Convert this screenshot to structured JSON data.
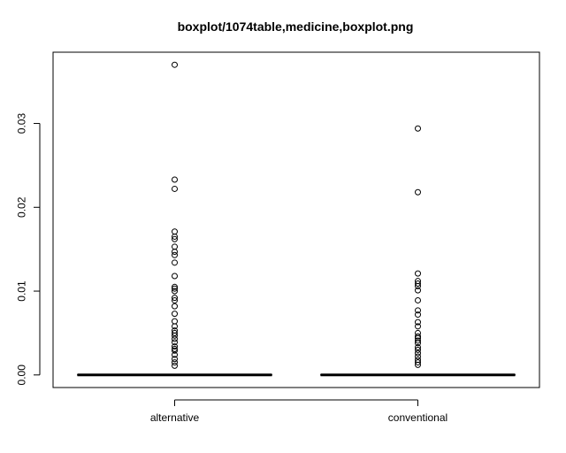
{
  "chart_data": {
    "type": "boxplot",
    "title": "boxplot/1074table,medicine,boxplot.png",
    "xlabel": "",
    "ylabel": "",
    "categories": [
      "alternative",
      "conventional"
    ],
    "ylim": [
      -0.0015,
      0.0385
    ],
    "yticks": [
      "0.00",
      "0.01",
      "0.02",
      "0.03"
    ],
    "grid": false,
    "colors": {
      "axis": "#000000",
      "median": "#000000",
      "outlier": "#000000",
      "background": "#ffffff"
    },
    "series": [
      {
        "category": "alternative",
        "min": 0,
        "q1": 0,
        "median": 0,
        "q3": 0,
        "max": 0,
        "outliers": [
          0.037,
          0.0233,
          0.0222,
          0.0171,
          0.0165,
          0.0162,
          0.0153,
          0.0147,
          0.0143,
          0.0134,
          0.0118,
          0.0105,
          0.0103,
          0.01,
          0.0092,
          0.0089,
          0.0082,
          0.0073,
          0.0064,
          0.0058,
          0.0053,
          0.005,
          0.0047,
          0.0043,
          0.0039,
          0.0034,
          0.0031,
          0.0029,
          0.0024,
          0.0019,
          0.0015,
          0.0011
        ]
      },
      {
        "category": "conventional",
        "min": 0,
        "q1": 0,
        "median": 0,
        "q3": 0,
        "max": 0,
        "outliers": [
          0.0294,
          0.0218,
          0.0121,
          0.0112,
          0.0109,
          0.0106,
          0.0101,
          0.0089,
          0.0077,
          0.0072,
          0.0063,
          0.0058,
          0.005,
          0.0046,
          0.0044,
          0.0041,
          0.0038,
          0.0033,
          0.003,
          0.0026,
          0.0022,
          0.0018,
          0.0015,
          0.0012
        ]
      }
    ]
  }
}
